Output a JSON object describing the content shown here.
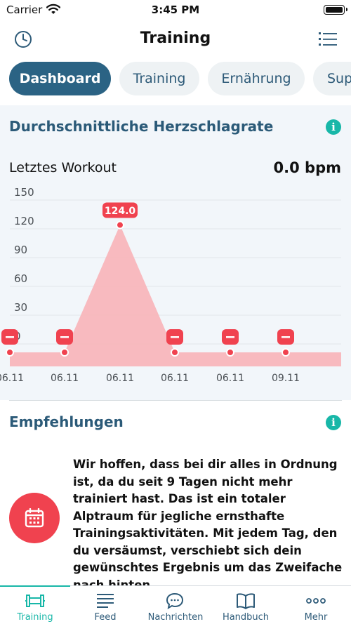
{
  "status_bar": {
    "carrier": "Carrier",
    "time": "3:45 PM"
  },
  "nav": {
    "title": "Training",
    "left_icon": "clock-icon",
    "right_icon": "list-icon"
  },
  "tabs": [
    {
      "label": "Dashboard",
      "active": true
    },
    {
      "label": "Training",
      "active": false
    },
    {
      "label": "Ernährung",
      "active": false
    },
    {
      "label": "Sup",
      "active": false
    }
  ],
  "heart_rate": {
    "title": "Durchschnittliche Herzschlagrate",
    "last_workout_label": "Letztes Workout",
    "last_workout_value": "0.0 bpm"
  },
  "chart_data": {
    "type": "area",
    "y_ticks": [
      "150",
      "120",
      "90",
      "60",
      "30",
      "0"
    ],
    "ylim": [
      0,
      150
    ],
    "x_labels": [
      "06.11",
      "06.11",
      "06.11",
      "06.11",
      "06.11",
      "09.11"
    ],
    "values": [
      0,
      0,
      124,
      0,
      0,
      0
    ],
    "data_labels": [
      "",
      "",
      "124.0",
      "",
      "",
      ""
    ],
    "colors": {
      "fill": "#f8b4b8",
      "marker": "#f0424f",
      "grid": "#e1e6ea"
    }
  },
  "recommendations": {
    "title": "Empfehlungen",
    "icon": "calendar-icon",
    "text": "Wir hoffen, dass bei dir alles in Ordnung ist, da du seit 9 Tagen nicht mehr trainiert hast. Das ist ein totaler Alptraum für jegliche ernsthafte Trainingsaktivitäten. Mit jedem Tag, den du versäumst, verschiebt sich dein gewünschtes Ergebnis um das Zweifache nach hinten"
  },
  "tabbar": [
    {
      "label": "Training",
      "icon": "dumbbell-icon",
      "active": true
    },
    {
      "label": "Feed",
      "icon": "feed-icon",
      "active": false
    },
    {
      "label": "Nachrichten",
      "icon": "chat-icon",
      "active": false
    },
    {
      "label": "Handbuch",
      "icon": "book-icon",
      "active": false
    },
    {
      "label": "Mehr",
      "icon": "more-icon",
      "active": false
    }
  ],
  "colors": {
    "primary": "#2b6384",
    "accent": "#18b7a8",
    "alert": "#f0424f"
  }
}
